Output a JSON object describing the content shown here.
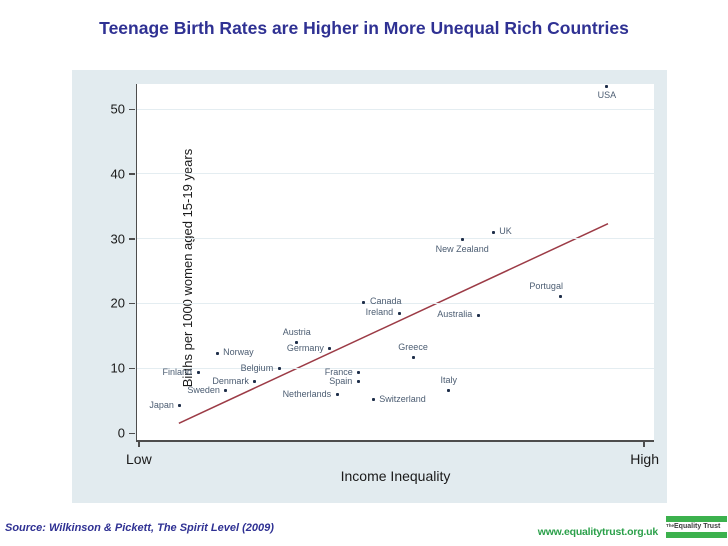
{
  "chart_data": {
    "type": "scatter",
    "title": "Teenage Birth Rates are Higher in More Unequal Rich Countries",
    "xlabel": "Income Inequality",
    "ylabel": "Births per 1000 women aged 15-19 years",
    "x_axis_end_labels": [
      "Low",
      "High"
    ],
    "y_ticks": [
      0,
      10,
      20,
      30,
      40,
      50
    ],
    "ylim": [
      0,
      55
    ],
    "xlim": [
      0,
      1
    ],
    "grid": true,
    "legend": "none",
    "panel_bg": "#e2ebef",
    "plot_bg": "#ffffff",
    "grid_color": "#e4edf1",
    "axis_color": "#4d4d4d",
    "point_color": "#1f2f4a",
    "label_color": "#4c5d72",
    "trend_color": "#9c3b46",
    "points": [
      {
        "label": "Japan",
        "x": 0.083,
        "y": 4.2,
        "side": "left"
      },
      {
        "label": "Finland",
        "x": 0.118,
        "y": 9.3,
        "side": "left"
      },
      {
        "label": "Norway",
        "x": 0.155,
        "y": 12.3,
        "side": "right"
      },
      {
        "label": "Sweden",
        "x": 0.172,
        "y": 6.5,
        "side": "left"
      },
      {
        "label": "Denmark",
        "x": 0.228,
        "y": 7.9,
        "side": "left"
      },
      {
        "label": "Belgium",
        "x": 0.275,
        "y": 9.9,
        "side": "left"
      },
      {
        "label": "Austria",
        "x": 0.309,
        "y": 13.9,
        "side": "above"
      },
      {
        "label": "Germany",
        "x": 0.373,
        "y": 13.0,
        "side": "left"
      },
      {
        "label": "Netherlands",
        "x": 0.387,
        "y": 5.9,
        "side": "left"
      },
      {
        "label": "Spain",
        "x": 0.428,
        "y": 7.9,
        "side": "left"
      },
      {
        "label": "France",
        "x": 0.429,
        "y": 9.3,
        "side": "left"
      },
      {
        "label": "Canada",
        "x": 0.439,
        "y": 20.2,
        "side": "right"
      },
      {
        "label": "Switzerland",
        "x": 0.457,
        "y": 5.1,
        "side": "right"
      },
      {
        "label": "Ireland",
        "x": 0.507,
        "y": 18.5,
        "side": "left"
      },
      {
        "label": "Greece",
        "x": 0.534,
        "y": 11.6,
        "side": "above"
      },
      {
        "label": "Italy",
        "x": 0.603,
        "y": 6.5,
        "side": "above"
      },
      {
        "label": "New Zealand",
        "x": 0.629,
        "y": 29.8,
        "side": "below"
      },
      {
        "label": "Australia",
        "x": 0.66,
        "y": 18.2,
        "side": "left"
      },
      {
        "label": "UK",
        "x": 0.689,
        "y": 31.0,
        "side": "right"
      },
      {
        "label": "Portugal",
        "x": 0.82,
        "y": 21.1,
        "side": "above-left"
      },
      {
        "label": "USA",
        "x": 0.909,
        "y": 53.5,
        "side": "below"
      }
    ],
    "trend_line": {
      "x1": 0.081,
      "y1": 1.5,
      "x2": 0.911,
      "y2": 32.3
    }
  },
  "footer": {
    "source": "Source: Wilkinson & Pickett, The Spirit Level (2009)",
    "source_color": "#2f3193",
    "website": "www.equalitytrust.org.uk",
    "website_color": "#2ba04a",
    "logo": {
      "prefix": "The",
      "name": "Equality Trust",
      "bar_color": "#3cb14d",
      "text_color": "#3d3d3d"
    }
  }
}
